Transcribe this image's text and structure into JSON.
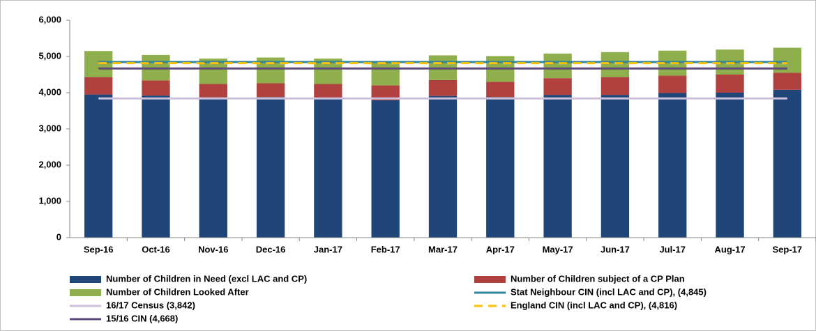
{
  "chart_data": {
    "type": "bar",
    "stacked": true,
    "categories": [
      "Sep-16",
      "Oct-16",
      "Nov-16",
      "Dec-16",
      "Jan-17",
      "Feb-17",
      "Mar-17",
      "Apr-17",
      "May-17",
      "Jun-17",
      "Jul-17",
      "Aug-17",
      "Sep-17"
    ],
    "ylim": [
      0,
      6000
    ],
    "yticks": [
      0,
      {
        "value": 1000,
        "label": "1,000"
      },
      {
        "value": 2000,
        "label": "2,000"
      },
      {
        "value": 3000,
        "label": "3,000"
      },
      {
        "value": 4000,
        "label": "4,000"
      },
      {
        "value": 5000,
        "label": "5,000"
      },
      {
        "value": 6000,
        "label": "6,000"
      }
    ],
    "series": [
      {
        "name": "Number of Children in Need (excl LAC and CP)",
        "kind": "bar",
        "color": "#1f4579",
        "values": [
          3950,
          3920,
          3870,
          3880,
          3860,
          3790,
          3910,
          3880,
          3940,
          3940,
          3990,
          4000,
          4080
        ]
      },
      {
        "name": "Number of Children subject of a CP Plan",
        "kind": "bar",
        "color": "#b0413e",
        "values": [
          480,
          420,
          370,
          380,
          380,
          410,
          440,
          420,
          460,
          490,
          480,
          500,
          470
        ]
      },
      {
        "name": "Number of Children Looked After",
        "kind": "bar",
        "color": "#8faf4c",
        "values": [
          720,
          700,
          700,
          710,
          700,
          670,
          680,
          710,
          680,
          690,
          690,
          690,
          690
        ]
      },
      {
        "name": "Stat Neighbour CIN (incl LAC and CP), (4,845)",
        "kind": "line",
        "color": "#31859c",
        "values": [
          4845,
          4845,
          4845,
          4845,
          4845,
          4845,
          4845,
          4845,
          4845,
          4845,
          4845,
          4845,
          4845
        ]
      },
      {
        "name": "16/17 Census (3,842)",
        "kind": "line",
        "color": "#ccc0da",
        "values": [
          3842,
          3842,
          3842,
          3842,
          3842,
          3842,
          3842,
          3842,
          3842,
          3842,
          3842,
          3842,
          3842
        ]
      },
      {
        "name": "England CIN (incl LAC and CP), (4,816)",
        "kind": "line",
        "color": "#ffc000",
        "dashed": true,
        "values": [
          4816,
          4816,
          4816,
          4816,
          4816,
          4816,
          4816,
          4816,
          4816,
          4816,
          4816,
          4816,
          4816
        ]
      },
      {
        "name": "15/16 CIN (4,668)",
        "kind": "line",
        "color": "#604a7b",
        "values": [
          4668,
          4668,
          4668,
          4668,
          4668,
          4668,
          4668,
          4668,
          4668,
          4668,
          4668,
          4668,
          4668
        ]
      }
    ]
  }
}
